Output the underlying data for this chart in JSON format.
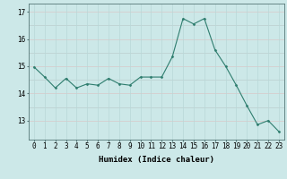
{
  "x": [
    0,
    1,
    2,
    3,
    4,
    5,
    6,
    7,
    8,
    9,
    10,
    11,
    12,
    13,
    14,
    15,
    16,
    17,
    18,
    19,
    20,
    21,
    22,
    23
  ],
  "y": [
    14.97,
    14.6,
    14.2,
    14.55,
    14.2,
    14.35,
    14.3,
    14.55,
    14.35,
    14.3,
    14.6,
    14.6,
    14.6,
    15.35,
    16.75,
    16.55,
    16.75,
    15.6,
    15.0,
    14.3,
    13.55,
    12.85,
    13.0,
    12.6
  ],
  "line_color": "#2e7d6e",
  "marker": "D",
  "marker_size": 1.5,
  "bg_color": "#cce8e8",
  "grid_color": "#b8d8d8",
  "grid_color_pink": "#d8c8c8",
  "xlabel": "Humidex (Indice chaleur)",
  "ylim": [
    12.3,
    17.3
  ],
  "xlim": [
    -0.5,
    23.5
  ],
  "yticks": [
    13,
    14,
    15,
    16,
    17
  ],
  "xticks": [
    0,
    1,
    2,
    3,
    4,
    5,
    6,
    7,
    8,
    9,
    10,
    11,
    12,
    13,
    14,
    15,
    16,
    17,
    18,
    19,
    20,
    21,
    22,
    23
  ],
  "xlabel_fontsize": 6.5,
  "tick_fontsize": 5.5
}
